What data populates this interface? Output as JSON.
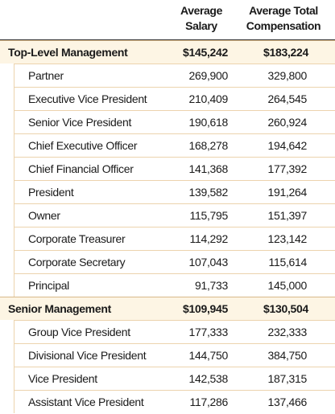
{
  "header": {
    "columns": [
      "Average Salary",
      "Average Total Compensation"
    ]
  },
  "groups": [
    {
      "name": "Top-Level Management",
      "salary": "$145,242",
      "compensation": "$183,224",
      "rows": [
        [
          "Partner",
          "269,900",
          "329,800"
        ],
        [
          "Executive Vice President",
          "210,409",
          "264,545"
        ],
        [
          "Senior Vice President",
          "190,618",
          "260,924"
        ],
        [
          "Chief Executive Officer",
          "168,278",
          "194,642"
        ],
        [
          "Chief Financial Officer",
          "141,368",
          "177,392"
        ],
        [
          "President",
          "139,582",
          "191,264"
        ],
        [
          "Owner",
          "115,795",
          "151,397"
        ],
        [
          "Corporate Treasurer",
          "114,292",
          "123,142"
        ],
        [
          "Corporate Secretary",
          "107,043",
          "115,614"
        ],
        [
          "Principal",
          "91,733",
          "145,000"
        ]
      ]
    },
    {
      "name": "Senior Management",
      "salary": "$109,945",
      "compensation": "$130,504",
      "rows": [
        [
          "Group Vice President",
          "177,333",
          "232,333"
        ],
        [
          "Divisional Vice President",
          "144,750",
          "384,750"
        ],
        [
          "Vice President",
          "142,538",
          "187,315"
        ],
        [
          "Assistant Vice President",
          "117,286",
          "137,466"
        ]
      ]
    }
  ]
}
